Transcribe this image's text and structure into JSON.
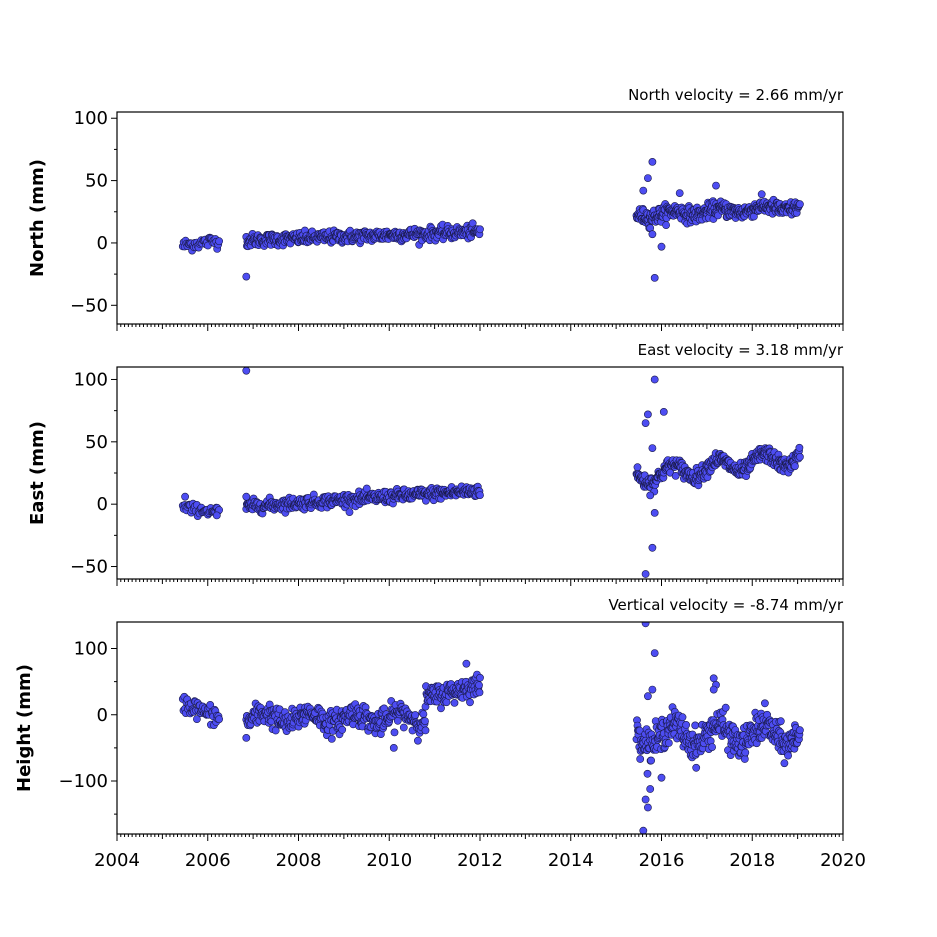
{
  "chart_data": [
    {
      "type": "scatter",
      "title": "North velocity = 2.66 mm/yr",
      "ylabel": "North (mm)",
      "xlim": [
        2004,
        2020
      ],
      "ylim": [
        -65,
        105
      ],
      "yticks": [
        -50,
        0,
        50,
        100
      ],
      "xticks": [
        2004,
        2006,
        2008,
        2010,
        2012,
        2014,
        2016,
        2018,
        2020
      ],
      "show_xtick_labels": false,
      "segments": [
        {
          "t0": 2005.45,
          "t1": 2006.25,
          "y0": -2,
          "y1": 2,
          "noise": 2.5,
          "n": 40
        },
        {
          "t0": 2006.85,
          "t1": 2012.0,
          "y0": 2,
          "y1": 9,
          "noise": 2.5,
          "n": 420
        },
        {
          "t0": 2015.45,
          "t1": 2019.05,
          "y0": 22,
          "y1": 29,
          "noise": 3,
          "n": 360,
          "amp": 2
        }
      ],
      "outliers": [
        [
          2006.85,
          -27
        ],
        [
          2015.8,
          65
        ],
        [
          2015.85,
          -28
        ],
        [
          2016.0,
          -3
        ],
        [
          2015.7,
          52
        ],
        [
          2017.2,
          46
        ],
        [
          2016.4,
          40
        ],
        [
          2015.6,
          42
        ],
        [
          2015.75,
          12
        ],
        [
          2015.8,
          7
        ]
      ],
      "color": "#4d4df2"
    },
    {
      "type": "scatter",
      "title": "East velocity = 3.18 mm/yr",
      "ylabel": "East (mm)",
      "xlim": [
        2004,
        2020
      ],
      "ylim": [
        -60,
        110
      ],
      "yticks": [
        -50,
        0,
        50,
        100
      ],
      "xticks": [
        2004,
        2006,
        2008,
        2010,
        2012,
        2014,
        2016,
        2018,
        2020
      ],
      "show_xtick_labels": false,
      "segments": [
        {
          "t0": 2005.45,
          "t1": 2006.25,
          "y0": -3,
          "y1": -6,
          "noise": 2,
          "n": 40
        },
        {
          "t0": 2006.85,
          "t1": 2012.0,
          "y0": -2,
          "y1": 11,
          "noise": 2.5,
          "n": 420
        },
        {
          "t0": 2015.45,
          "t1": 2019.05,
          "y0": 22,
          "y1": 38,
          "noise": 3,
          "n": 360,
          "amp": 6
        }
      ],
      "outliers": [
        [
          2006.85,
          107
        ],
        [
          2015.85,
          100
        ],
        [
          2015.7,
          72
        ],
        [
          2016.05,
          74
        ],
        [
          2015.65,
          65
        ],
        [
          2015.8,
          -35
        ],
        [
          2015.85,
          -7
        ],
        [
          2015.65,
          -56
        ],
        [
          2015.8,
          45
        ],
        [
          2015.75,
          7
        ],
        [
          2005.5,
          6
        ],
        [
          2006.85,
          6
        ],
        [
          2006.2,
          -9
        ]
      ],
      "color": "#4d4df2"
    },
    {
      "type": "scatter",
      "title": "Vertical velocity = -8.74 mm/yr",
      "ylabel": "Height (mm)",
      "xlim": [
        2004,
        2020
      ],
      "ylim": [
        -180,
        140
      ],
      "yticks": [
        -100,
        0,
        100
      ],
      "xticks": [
        2004,
        2006,
        2008,
        2010,
        2012,
        2014,
        2016,
        2018,
        2020
      ],
      "xtick_labels": [
        "2004",
        "2006",
        "2008",
        "2010",
        "2012",
        "2014",
        "2016",
        "2018",
        "2020"
      ],
      "show_xtick_labels": true,
      "segments": [
        {
          "t0": 2005.45,
          "t1": 2006.25,
          "y0": 18,
          "y1": -5,
          "noise": 7,
          "n": 50
        },
        {
          "t0": 2006.85,
          "t1": 2010.8,
          "y0": -5,
          "y1": -5,
          "noise": 9,
          "n": 330,
          "amp": 8
        },
        {
          "t0": 2010.8,
          "t1": 2012.0,
          "y0": 25,
          "y1": 45,
          "noise": 8,
          "n": 110
        },
        {
          "t0": 2015.45,
          "t1": 2019.05,
          "y0": -30,
          "y1": -30,
          "noise": 12,
          "n": 360,
          "amp": 15
        }
      ],
      "outliers": [
        [
          2015.65,
          138
        ],
        [
          2015.85,
          93
        ],
        [
          2015.65,
          -128
        ],
        [
          2015.7,
          -140
        ],
        [
          2015.75,
          -112
        ],
        [
          2015.6,
          -175
        ],
        [
          2017.15,
          55
        ],
        [
          2017.2,
          45
        ],
        [
          2017.15,
          38
        ],
        [
          2010.1,
          -50
        ],
        [
          2011.7,
          77
        ],
        [
          2015.8,
          38
        ],
        [
          2015.7,
          28
        ],
        [
          2016.0,
          -95
        ],
        [
          2006.85,
          -35
        ]
      ],
      "color": "#4d4df2"
    }
  ]
}
